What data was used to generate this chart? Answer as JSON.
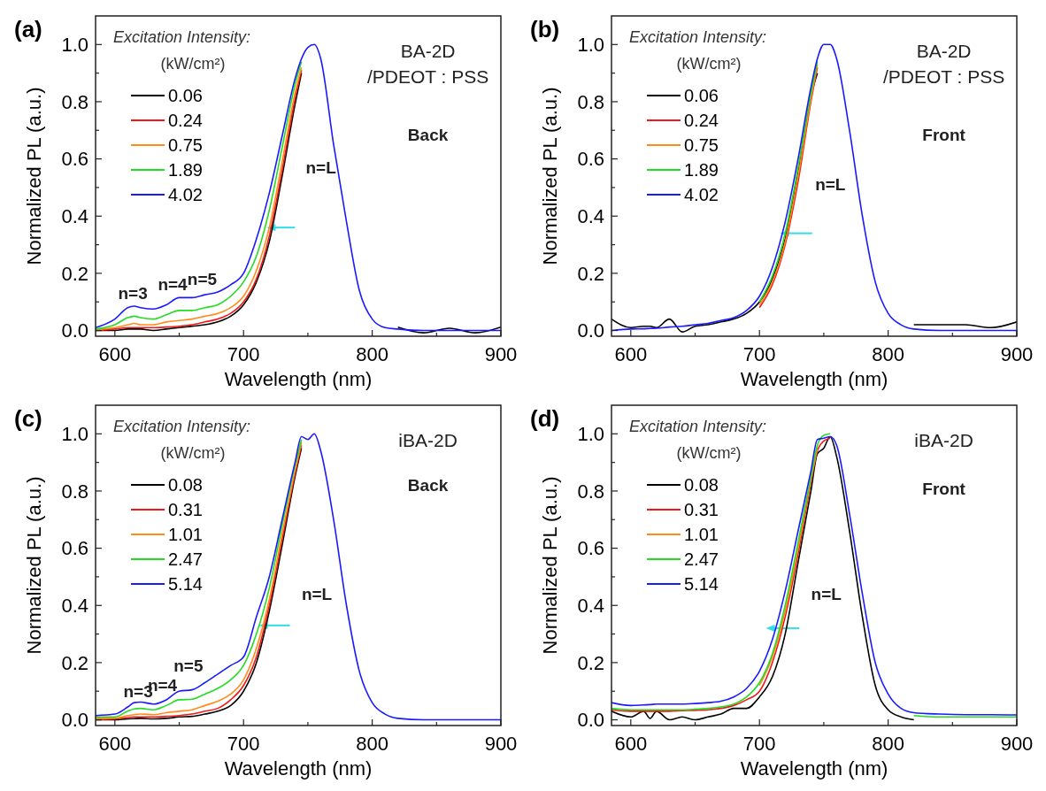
{
  "chart_data": [
    {
      "type": "line",
      "title": "(a)",
      "xlabel": "Wavelength (nm)",
      "ylabel": "Normalized PL (a.u.)",
      "legend_title": "Excitation Intensity:\n(kW/cm²)",
      "legend": "top left",
      "xlim": [
        585,
        900
      ],
      "ylim": [
        -0.02,
        1.1
      ],
      "xticks": [
        600,
        {
          "value": 650,
          "label": null
        },
        700,
        {
          "value": 750,
          "label": null
        },
        800,
        {
          "value": 850,
          "label": null
        },
        900
      ],
      "yticks": [
        {
          "value": 0,
          "label": "0.0"
        },
        {
          "value": 0.1,
          "label": null
        },
        0.2,
        {
          "value": 0.3,
          "label": null
        },
        0.4,
        {
          "value": 0.5,
          "label": null
        },
        0.6,
        {
          "value": 0.7,
          "label": null
        },
        0.8,
        {
          "value": 0.9,
          "label": null
        },
        {
          "value": 1,
          "label": "1.0"
        }
      ],
      "annotations": [
        "BA-2D",
        "/PDEOT : PSS",
        "Back",
        "n=L",
        "n=3",
        "n=4",
        "n=5"
      ],
      "x": [
        585,
        600,
        610,
        615,
        620,
        630,
        640,
        650,
        660,
        670,
        680,
        690,
        700,
        710,
        720,
        730,
        740,
        745,
        750,
        755,
        760,
        770,
        780,
        790,
        800,
        810,
        820,
        840,
        860,
        880,
        900
      ],
      "series": [
        {
          "name": "0.06",
          "color": "#000000",
          "values": [
            0,
            0,
            0.005,
            0.005,
            0.005,
            0,
            0.005,
            0.01,
            0.015,
            0.02,
            0.03,
            0.05,
            0.09,
            0.17,
            0.31,
            0.54,
            0.79,
            0.9,
            null,
            null,
            null,
            null,
            null,
            null,
            null,
            null,
            0.012,
            -0.008,
            0.008,
            -0.008,
            0.012
          ]
        },
        {
          "name": "0.24",
          "color": "#f21818",
          "values": [
            0,
            0.005,
            0.01,
            0.01,
            0.01,
            0.01,
            0.012,
            0.015,
            0.02,
            0.03,
            0.04,
            0.06,
            0.1,
            0.18,
            0.33,
            0.56,
            0.81,
            0.91,
            null,
            null,
            null,
            null,
            null,
            null,
            null,
            null,
            null,
            null,
            null,
            null,
            null
          ]
        },
        {
          "name": "0.75",
          "color": "#ff8c1a",
          "values": [
            0.003,
            0.01,
            0.02,
            0.025,
            0.02,
            0.02,
            0.03,
            0.035,
            0.04,
            0.05,
            0.06,
            0.08,
            0.12,
            0.21,
            0.36,
            0.59,
            0.83,
            0.92,
            null,
            null,
            null,
            null,
            null,
            null,
            null,
            null,
            null,
            null,
            null,
            null,
            null
          ]
        },
        {
          "name": "1.89",
          "color": "#22dd22",
          "values": [
            0.005,
            0.02,
            0.045,
            0.05,
            0.045,
            0.04,
            0.055,
            0.07,
            0.07,
            0.08,
            0.09,
            0.12,
            0.17,
            0.26,
            0.42,
            0.64,
            0.86,
            0.94,
            null,
            null,
            null,
            null,
            null,
            null,
            null,
            null,
            null,
            null,
            null,
            null,
            null
          ]
        },
        {
          "name": "4.02",
          "color": "#1a1aff",
          "values": [
            0.01,
            0.04,
            0.08,
            0.085,
            0.08,
            0.075,
            0.09,
            0.115,
            0.115,
            0.125,
            0.135,
            0.16,
            0.2,
            0.32,
            0.48,
            0.68,
            0.88,
            0.95,
            0.99,
            1.0,
            0.95,
            0.65,
            0.38,
            0.14,
            0.04,
            0.01,
            0.005,
            0,
            0,
            0,
            0
          ]
        }
      ]
    },
    {
      "type": "line",
      "title": "(b)",
      "xlabel": "Wavelength (nm)",
      "ylabel": "Normalized PL (a.u.)",
      "legend_title": "Excitation Intensity:\n(kW/cm²)",
      "legend": "top left",
      "xlim": [
        585,
        900
      ],
      "ylim": [
        -0.02,
        1.1
      ],
      "xticks": [
        600,
        {
          "value": 650,
          "label": null
        },
        700,
        {
          "value": 750,
          "label": null
        },
        800,
        {
          "value": 850,
          "label": null
        },
        900
      ],
      "yticks": [
        {
          "value": 0,
          "label": "0.0"
        },
        {
          "value": 0.1,
          "label": null
        },
        0.2,
        {
          "value": 0.3,
          "label": null
        },
        0.4,
        {
          "value": 0.5,
          "label": null
        },
        0.6,
        {
          "value": 0.7,
          "label": null
        },
        0.8,
        {
          "value": 0.9,
          "label": null
        },
        {
          "value": 1,
          "label": "1.0"
        }
      ],
      "annotations": [
        "BA-2D",
        "/PDEOT : PSS",
        "Front",
        "n=L"
      ],
      "x": [
        585,
        600,
        610,
        615,
        620,
        630,
        640,
        650,
        660,
        670,
        680,
        690,
        700,
        710,
        720,
        730,
        740,
        745,
        750,
        755,
        760,
        770,
        780,
        790,
        800,
        810,
        820,
        840,
        860,
        880,
        900
      ],
      "series": [
        {
          "name": "0.06",
          "color": "#000000",
          "values": [
            0.04,
            0.01,
            0.015,
            0.015,
            0.01,
            0.04,
            -0.005,
            0.015,
            0.02,
            0.03,
            0.04,
            0.06,
            0.1,
            0.18,
            0.32,
            0.55,
            0.82,
            0.9,
            null,
            null,
            null,
            null,
            null,
            null,
            null,
            null,
            0.02,
            0.02,
            0.02,
            0.01,
            0.03
          ]
        },
        {
          "name": "0.24",
          "color": "#f21818",
          "values": [
            null,
            null,
            null,
            null,
            null,
            null,
            null,
            null,
            null,
            null,
            null,
            null,
            0.08,
            0.16,
            0.3,
            0.52,
            0.8,
            0.92,
            null,
            null,
            null,
            null,
            null,
            null,
            null,
            null,
            null,
            null,
            null,
            null,
            null
          ]
        },
        {
          "name": "0.75",
          "color": "#ff8c1a",
          "values": [
            null,
            null,
            null,
            null,
            null,
            null,
            null,
            null,
            null,
            null,
            null,
            null,
            0.09,
            0.17,
            0.31,
            0.54,
            0.81,
            0.93,
            null,
            null,
            null,
            null,
            null,
            null,
            null,
            null,
            null,
            null,
            null,
            null,
            null
          ]
        },
        {
          "name": "1.89",
          "color": "#22dd22",
          "values": [
            null,
            null,
            null,
            null,
            null,
            null,
            null,
            null,
            null,
            null,
            null,
            null,
            0.1,
            0.19,
            0.34,
            0.57,
            0.83,
            0.94,
            null,
            null,
            null,
            null,
            null,
            null,
            null,
            null,
            null,
            null,
            null,
            null,
            null
          ]
        },
        {
          "name": "4.02",
          "color": "#1a1aff",
          "values": [
            0,
            0.005,
            0.006,
            0.007,
            0.008,
            0.012,
            0.015,
            0.02,
            0.025,
            0.035,
            0.045,
            0.07,
            0.12,
            0.22,
            0.38,
            0.6,
            0.85,
            0.95,
            1.0,
            1.0,
            0.95,
            0.7,
            0.4,
            0.17,
            0.06,
            0.02,
            0.005,
            0,
            0,
            0,
            0
          ]
        }
      ]
    },
    {
      "type": "line",
      "title": "(c)",
      "xlabel": "Wavelength (nm)",
      "ylabel": "Normalized PL (a.u.)",
      "legend_title": "Excitation Intensity:\n(kW/cm²)",
      "legend": "top left",
      "xlim": [
        585,
        900
      ],
      "ylim": [
        -0.02,
        1.1
      ],
      "xticks": [
        600,
        {
          "value": 650,
          "label": null
        },
        700,
        {
          "value": 750,
          "label": null
        },
        800,
        {
          "value": 850,
          "label": null
        },
        900
      ],
      "yticks": [
        {
          "value": 0,
          "label": "0.0"
        },
        {
          "value": 0.1,
          "label": null
        },
        0.2,
        {
          "value": 0.3,
          "label": null
        },
        0.4,
        {
          "value": 0.5,
          "label": null
        },
        0.6,
        {
          "value": 0.7,
          "label": null
        },
        0.8,
        {
          "value": 0.9,
          "label": null
        },
        {
          "value": 1,
          "label": "1.0"
        }
      ],
      "annotations": [
        "iBA-2D",
        "Back",
        "n=L",
        "n=3",
        "n=4",
        "n=5"
      ],
      "x": [
        585,
        600,
        610,
        615,
        620,
        630,
        640,
        650,
        660,
        670,
        680,
        690,
        700,
        710,
        720,
        730,
        740,
        745,
        750,
        755,
        760,
        770,
        780,
        790,
        800,
        810,
        820,
        840,
        860,
        880,
        900
      ],
      "series": [
        {
          "name": "0.08",
          "color": "#000000",
          "values": [
            0,
            0,
            0.003,
            0.004,
            0.005,
            0.003,
            0.005,
            0.01,
            0.012,
            0.02,
            0.03,
            0.05,
            0.1,
            0.2,
            0.38,
            0.61,
            0.85,
            0.95,
            null,
            null,
            null,
            null,
            null,
            null,
            null,
            null,
            null,
            null,
            null,
            null,
            null
          ]
        },
        {
          "name": "0.31",
          "color": "#f21818",
          "values": [
            0,
            0.003,
            0.008,
            0.01,
            0.01,
            0.01,
            0.012,
            0.015,
            0.02,
            0.03,
            0.04,
            0.07,
            0.12,
            0.22,
            0.4,
            0.63,
            0.86,
            0.96,
            null,
            null,
            null,
            null,
            null,
            null,
            null,
            null,
            null,
            null,
            null,
            null,
            null
          ]
        },
        {
          "name": "1.01",
          "color": "#ff8c1a",
          "values": [
            0.005,
            0.006,
            0.015,
            0.018,
            0.02,
            0.018,
            0.025,
            0.03,
            0.035,
            0.05,
            0.065,
            0.09,
            0.14,
            0.25,
            0.42,
            0.65,
            0.87,
            0.97,
            null,
            null,
            null,
            null,
            null,
            null,
            null,
            null,
            null,
            null,
            null,
            null,
            null
          ]
        },
        {
          "name": "2.47",
          "color": "#22dd22",
          "values": [
            0.01,
            0.01,
            0.03,
            0.038,
            0.04,
            0.035,
            0.05,
            0.07,
            0.072,
            0.09,
            0.11,
            0.14,
            0.19,
            0.3,
            0.46,
            0.68,
            0.89,
            0.98,
            null,
            null,
            null,
            null,
            null,
            null,
            null,
            null,
            null,
            null,
            null,
            null,
            null
          ]
        },
        {
          "name": "5.14",
          "color": "#1a1aff",
          "values": [
            0.015,
            0.02,
            0.045,
            0.06,
            0.062,
            0.055,
            0.07,
            0.1,
            0.105,
            0.13,
            0.16,
            0.19,
            0.22,
            0.36,
            0.5,
            0.7,
            0.9,
            0.99,
            0.98,
            1.0,
            0.94,
            0.7,
            0.4,
            0.17,
            0.06,
            0.02,
            0.005,
            0,
            0,
            0,
            0
          ]
        }
      ]
    },
    {
      "type": "line",
      "title": "(d)",
      "xlabel": "Wavelength (nm)",
      "ylabel": "Normalized PL (a.u.)",
      "legend_title": "Excitation Intensity:\n(kW/cm²)",
      "legend": "top left",
      "xlim": [
        585,
        900
      ],
      "ylim": [
        -0.02,
        1.1
      ],
      "xticks": [
        600,
        {
          "value": 650,
          "label": null
        },
        700,
        {
          "value": 750,
          "label": null
        },
        800,
        {
          "value": 850,
          "label": null
        },
        900
      ],
      "yticks": [
        {
          "value": 0,
          "label": "0.0"
        },
        {
          "value": 0.1,
          "label": null
        },
        0.2,
        {
          "value": 0.3,
          "label": null
        },
        0.4,
        {
          "value": 0.5,
          "label": null
        },
        0.6,
        {
          "value": 0.7,
          "label": null
        },
        0.8,
        {
          "value": 0.9,
          "label": null
        },
        {
          "value": 1,
          "label": "1.0"
        }
      ],
      "annotations": [
        "iBA-2D",
        "Front",
        "n=L"
      ],
      "x": [
        585,
        600,
        610,
        615,
        620,
        630,
        640,
        650,
        660,
        670,
        680,
        690,
        700,
        710,
        720,
        730,
        740,
        745,
        750,
        755,
        760,
        770,
        780,
        790,
        800,
        810,
        820,
        840,
        860,
        880,
        900
      ],
      "series": [
        {
          "name": "0.08",
          "color": "#000000",
          "values": [
            0.03,
            0.01,
            0.03,
            0.005,
            0.03,
            0,
            0.01,
            0,
            0.01,
            0.02,
            0.04,
            0.04,
            0.08,
            0.15,
            0.3,
            0.55,
            0.8,
            0.93,
            0.95,
            0.99,
            0.92,
            0.66,
            0.36,
            0.12,
            0.035,
            0.01,
            0,
            null,
            null,
            null,
            null
          ]
        },
        {
          "name": "0.31",
          "color": "#f21818",
          "values": [
            0.035,
            0.03,
            0.03,
            0.03,
            0.03,
            0.03,
            0.032,
            0.033,
            0.035,
            0.04,
            0.05,
            0.07,
            0.1,
            0.2,
            0.36,
            0.58,
            0.83,
            0.94,
            0.975,
            0.985,
            null,
            null,
            null,
            null,
            null,
            null,
            null,
            null,
            null,
            null,
            null
          ]
        },
        {
          "name": "1.01",
          "color": "#ff8c1a",
          "values": [
            null,
            null,
            null,
            null,
            null,
            null,
            null,
            null,
            null,
            null,
            null,
            null,
            0.12,
            0.22,
            0.38,
            0.6,
            0.84,
            0.95,
            null,
            null,
            null,
            null,
            null,
            null,
            null,
            null,
            null,
            null,
            null,
            null,
            null
          ]
        },
        {
          "name": "2.47",
          "color": "#22dd22",
          "values": [
            0.04,
            0.035,
            0.035,
            0.035,
            0.035,
            0.035,
            0.035,
            0.037,
            0.04,
            0.045,
            0.055,
            0.08,
            0.13,
            0.23,
            0.4,
            0.62,
            0.85,
            0.96,
            0.995,
            1.0,
            null,
            null,
            null,
            null,
            null,
            null,
            0.015,
            0.01,
            0.01,
            0.01,
            0.01
          ]
        },
        {
          "name": "5.14",
          "color": "#1a1aff",
          "values": [
            0.06,
            0.05,
            0.052,
            0.053,
            0.055,
            0.055,
            0.055,
            0.057,
            0.06,
            0.065,
            0.08,
            0.11,
            0.17,
            0.28,
            0.45,
            0.66,
            0.87,
            0.98,
            0.985,
            0.99,
            0.96,
            0.72,
            0.44,
            0.2,
            0.09,
            0.04,
            0.025,
            0.02,
            0.018,
            0.018,
            0.017
          ]
        }
      ]
    }
  ]
}
